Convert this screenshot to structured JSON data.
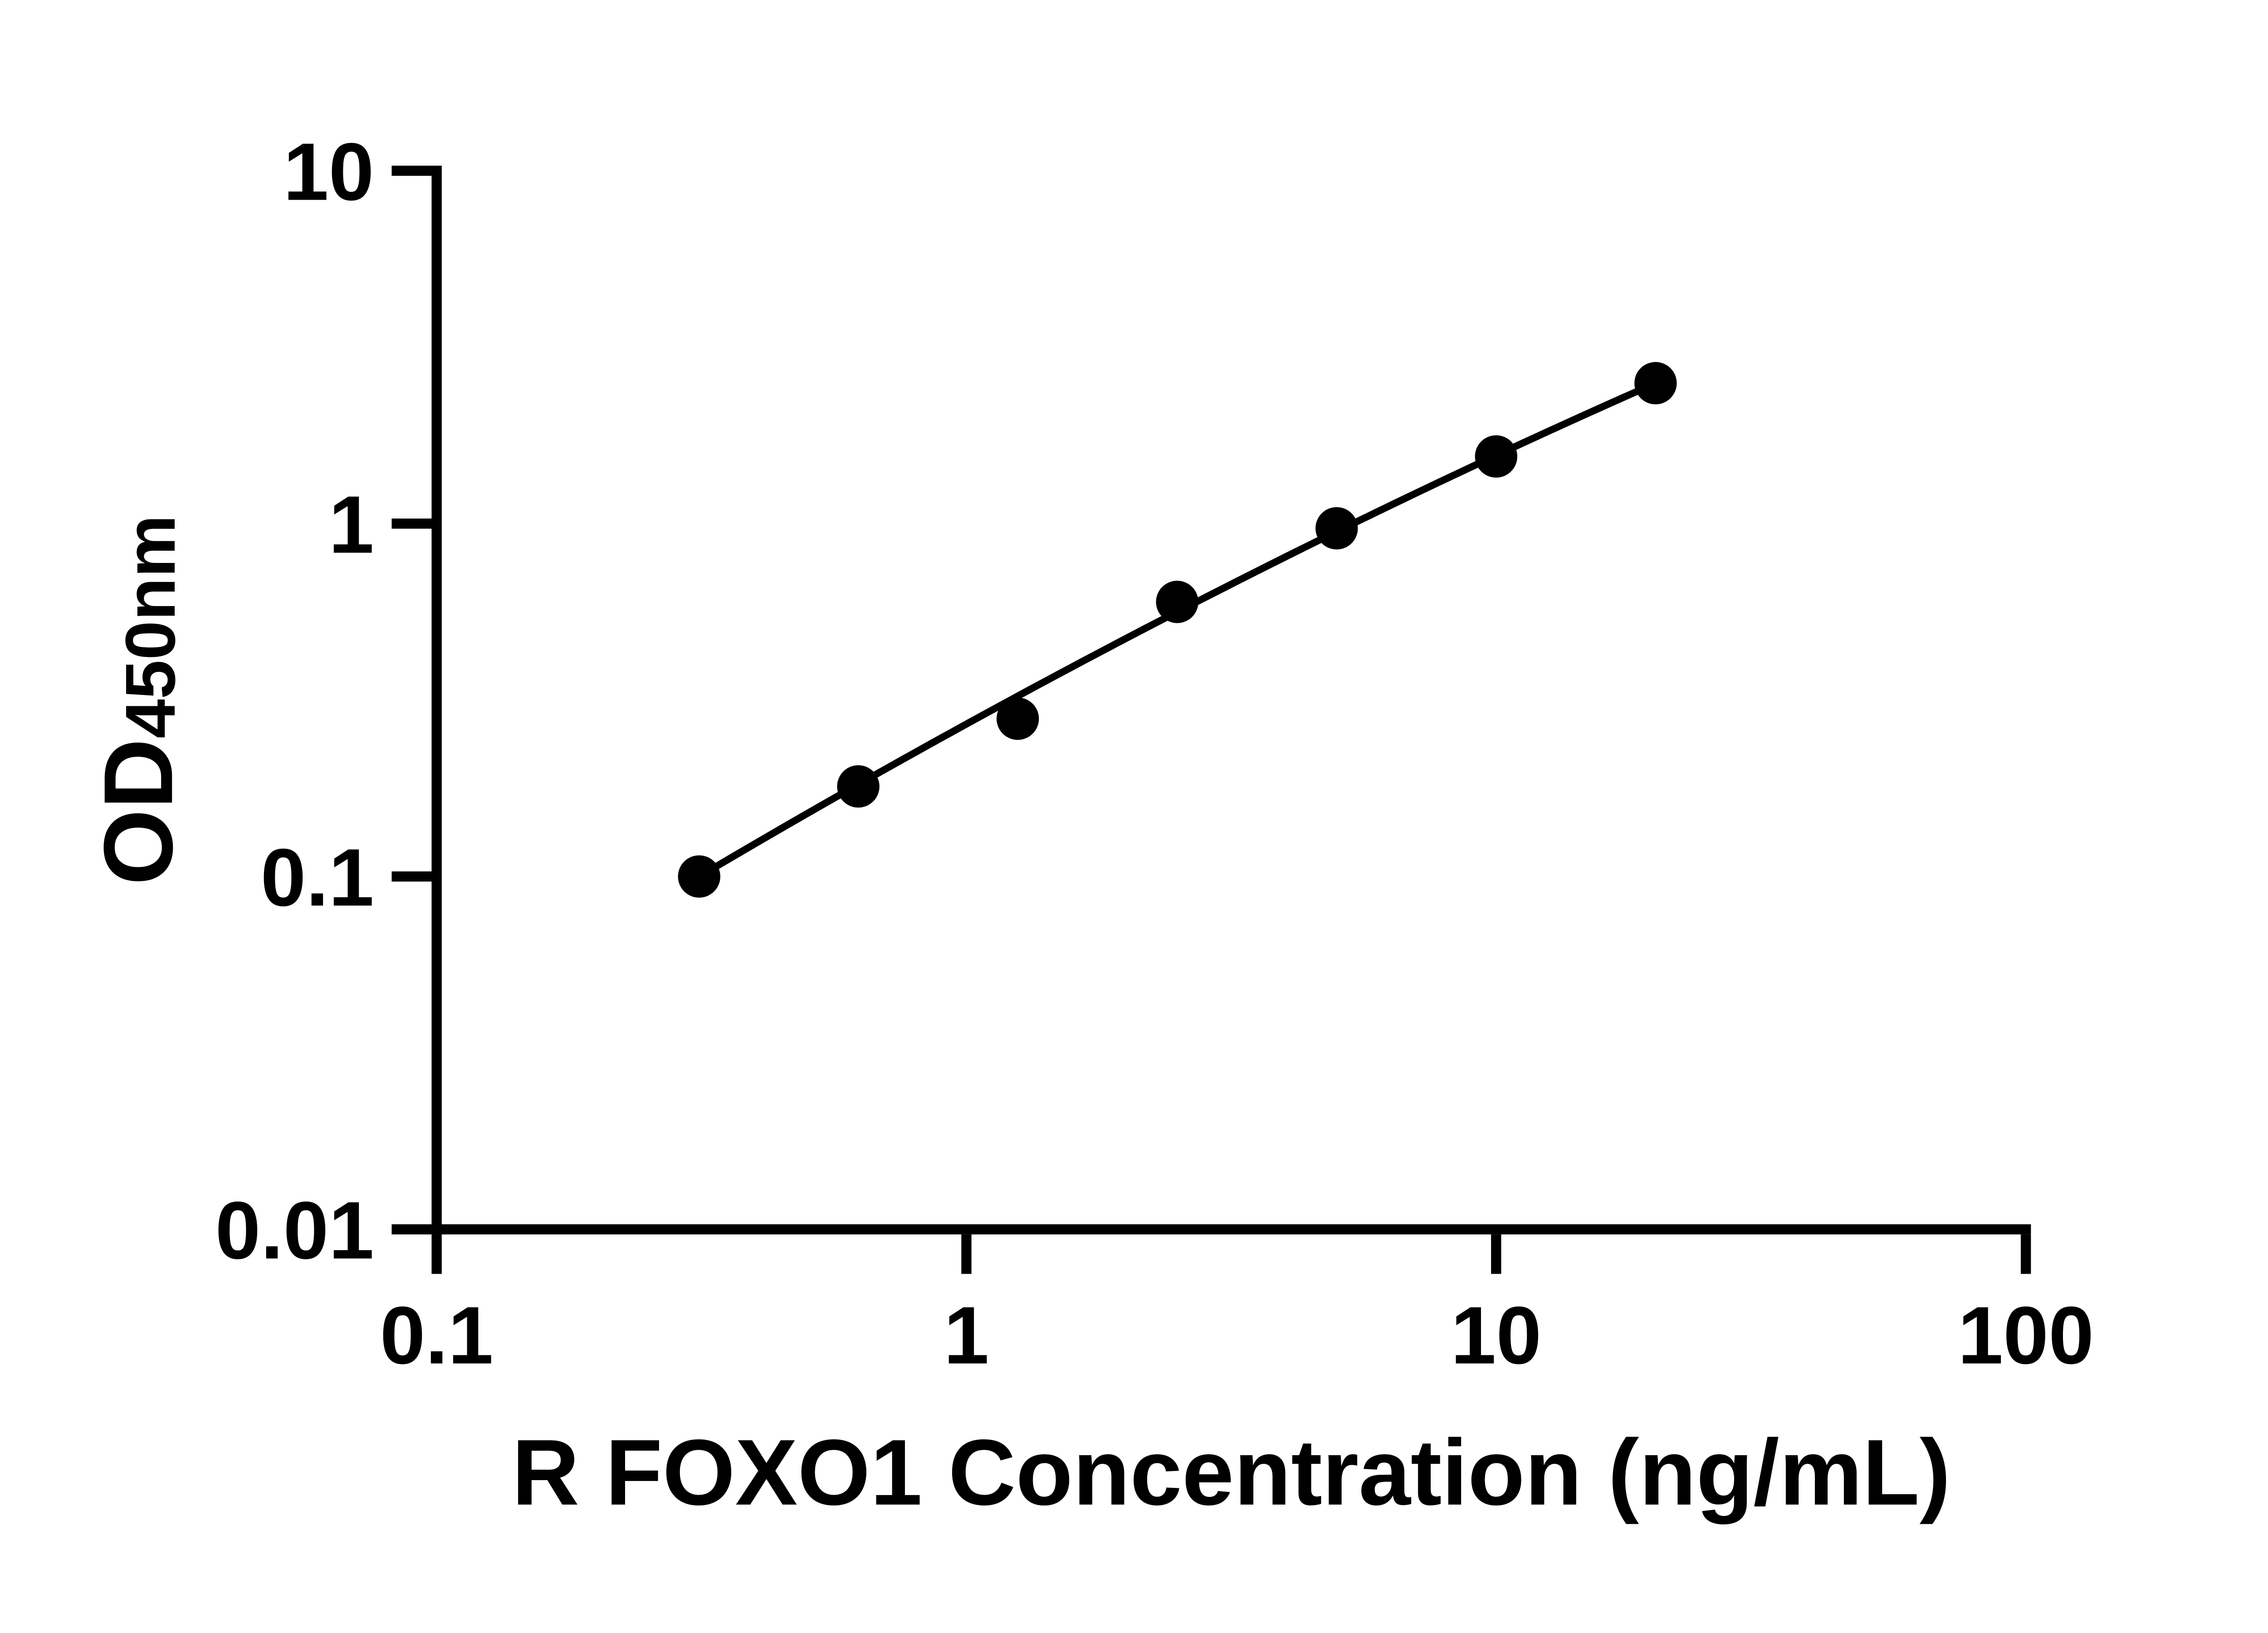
{
  "chart_data": {
    "type": "scatter",
    "xlabel": "R FOXO1 Concentration (ng/mL)",
    "ylabel_main": "OD",
    "ylabel_sub": "450nm",
    "x_scale": "log",
    "y_scale": "log",
    "xlim": [
      0.1,
      100
    ],
    "ylim": [
      0.01,
      10
    ],
    "grid": false,
    "legend": "none",
    "x_ticks": [
      {
        "v": 0.1,
        "label": "0.1"
      },
      {
        "v": 1,
        "label": "1"
      },
      {
        "v": 10,
        "label": "10"
      },
      {
        "v": 100,
        "label": "100"
      }
    ],
    "y_ticks": [
      {
        "v": 10,
        "label": "10"
      },
      {
        "v": 1,
        "label": "1"
      },
      {
        "v": 0.1,
        "label": "0.1"
      },
      {
        "v": 0.01,
        "label": "0.01"
      }
    ],
    "points": [
      {
        "x": 0.313,
        "y": 0.1
      },
      {
        "x": 0.625,
        "y": 0.18
      },
      {
        "x": 1.25,
        "y": 0.28
      },
      {
        "x": 2.5,
        "y": 0.6
      },
      {
        "x": 5,
        "y": 0.97
      },
      {
        "x": 10,
        "y": 1.55
      },
      {
        "x": 20,
        "y": 2.5
      }
    ],
    "fit_curve": {
      "type": "quadratic-loglog",
      "equation": "log10(y) = a*log10(x)^2 + b*log10(x) + c",
      "a": -0.063,
      "b": 0.8245,
      "c": -0.5681,
      "domain": [
        0.313,
        20
      ]
    },
    "marker": {
      "shape": "circle",
      "color": "#000000"
    },
    "colors": {
      "fg": "#000000",
      "bg": "#ffffff"
    }
  }
}
